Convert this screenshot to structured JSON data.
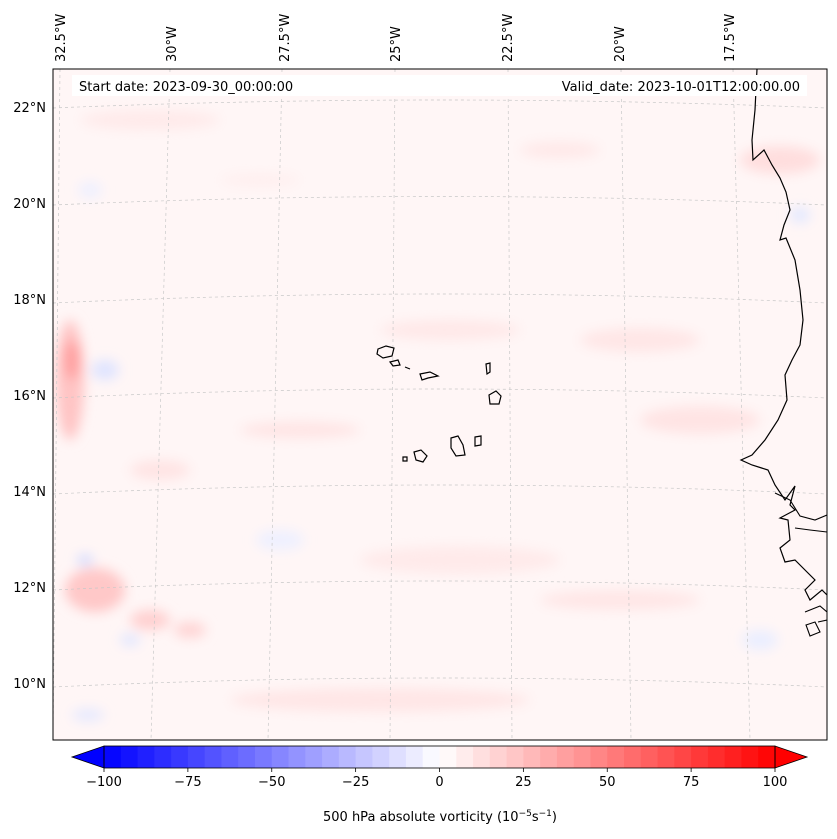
{
  "map": {
    "start_date": "Start date: 2023-09-30_00:00:00",
    "valid_date": "Valid_date: 2023-10-01T12:00:00.00",
    "lon_labels": [
      "32.5°W",
      "30°W",
      "27.5°W",
      "25°W",
      "22.5°W",
      "20°W",
      "17.5°W"
    ],
    "lat_labels": [
      "22°N",
      "20°N",
      "18°N",
      "16°N",
      "14°N",
      "12°N",
      "10°N"
    ],
    "field": "500 hPa absolute vorticity",
    "colorbar": {
      "label_prefix": "500 hPa absolute vorticity (10",
      "label_exp1": "−5",
      "label_mid": "s",
      "label_exp2": "−1",
      "label_suffix": ")",
      "min": -100,
      "max": 100,
      "ticks": [
        "−100",
        "−75",
        "−50",
        "−25",
        "0",
        "25",
        "50",
        "75",
        "100"
      ],
      "tick_values": [
        -100,
        -75,
        -50,
        -25,
        0,
        25,
        50,
        75,
        100
      ],
      "negative_color": "#0000ff",
      "positive_color": "#ff0000",
      "neutral_color": "#ffffff"
    },
    "colors": {
      "background_field": "#fff5f5",
      "coastline": "#000000",
      "gridline": "#bbbbbb"
    }
  }
}
